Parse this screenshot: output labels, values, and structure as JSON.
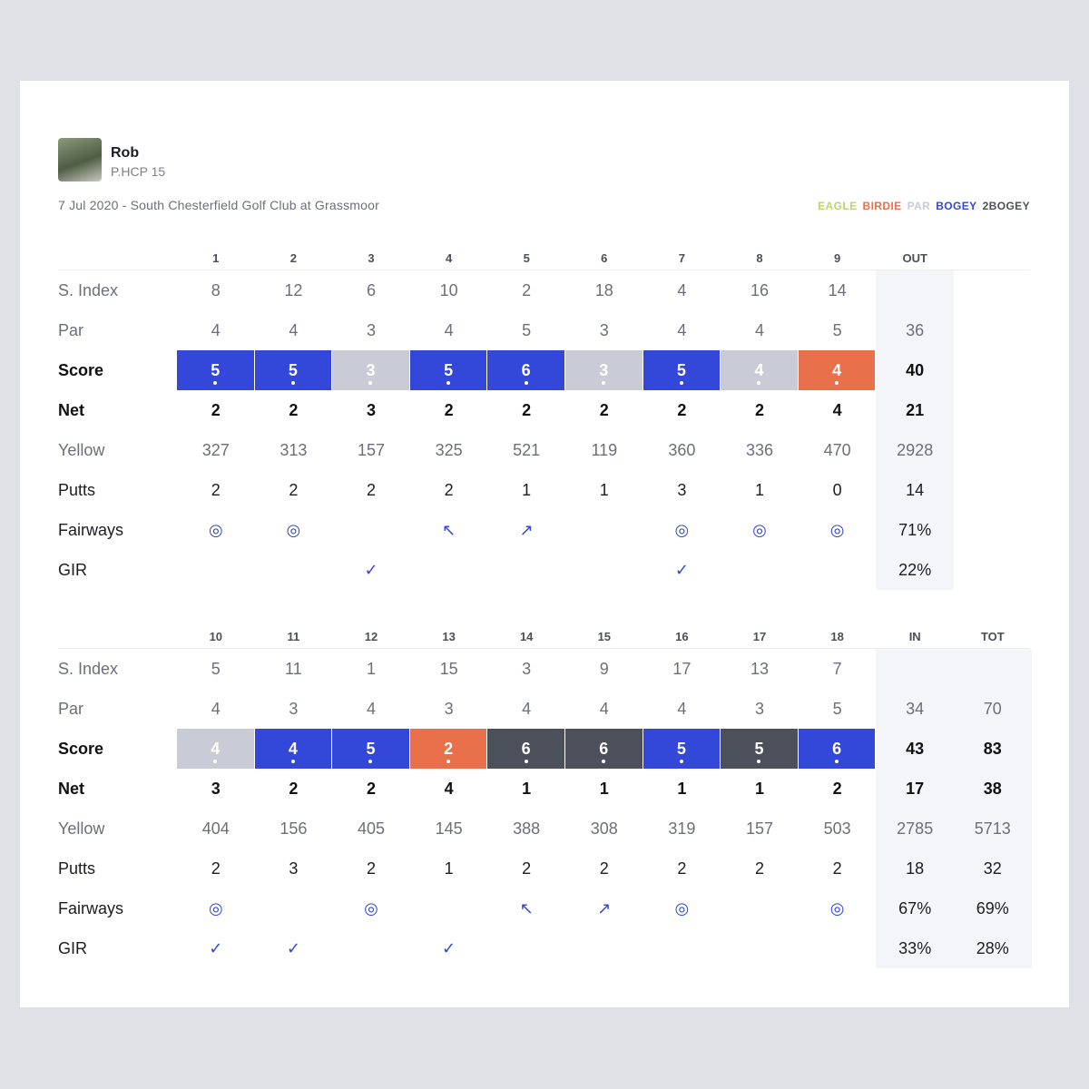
{
  "player": {
    "name": "Rob",
    "handicap": "P.HCP 15"
  },
  "round": "7 Jul 2020 - South Chesterfield Golf Club at Grassmoor",
  "legend": [
    {
      "label": "EAGLE",
      "color": "#b7d66e"
    },
    {
      "label": "BIRDIE",
      "color": "#e8704a"
    },
    {
      "label": "PAR",
      "color": "#c9ccd6"
    },
    {
      "label": "BOGEY",
      "color": "#3347d9"
    },
    {
      "label": "2BOGEY",
      "color": "#4b505b"
    }
  ],
  "tables": [
    {
      "columns": [
        "1",
        "2",
        "3",
        "4",
        "5",
        "6",
        "7",
        "8",
        "9",
        "OUT"
      ],
      "rows": [
        {
          "label": "S. Index",
          "cells": [
            8,
            12,
            6,
            10,
            2,
            18,
            4,
            16,
            14,
            null
          ]
        },
        {
          "label": "Par",
          "cells": [
            4,
            4,
            3,
            4,
            5,
            3,
            4,
            4,
            5,
            36
          ]
        },
        {
          "label": "Score",
          "cells": [
            5,
            5,
            3,
            5,
            6,
            3,
            5,
            4,
            4,
            40
          ],
          "results": [
            3,
            3,
            2,
            3,
            3,
            2,
            3,
            2,
            1
          ]
        },
        {
          "label": "Net",
          "cells": [
            2,
            2,
            3,
            2,
            2,
            2,
            2,
            2,
            4,
            21
          ]
        },
        {
          "label": "Yellow",
          "cells": [
            327,
            313,
            157,
            325,
            521,
            119,
            360,
            336,
            470,
            2928
          ]
        },
        {
          "label": "Putts",
          "cells": [
            2,
            2,
            2,
            2,
            1,
            1,
            3,
            1,
            0,
            14
          ]
        },
        {
          "label": "Fairways",
          "cells": [
            "◎",
            "◎",
            null,
            "↖",
            "↗",
            null,
            "◎",
            "◎",
            "◎",
            "71%"
          ]
        },
        {
          "label": "GIR",
          "cells": [
            null,
            null,
            "✓",
            null,
            null,
            null,
            "✓",
            null,
            null,
            "22%"
          ]
        }
      ]
    },
    {
      "columns": [
        "10",
        "11",
        "12",
        "13",
        "14",
        "15",
        "16",
        "17",
        "18",
        "IN",
        "TOT"
      ],
      "rows": [
        {
          "label": "S. Index",
          "cells": [
            5,
            11,
            1,
            15,
            3,
            9,
            17,
            13,
            7,
            null,
            null
          ]
        },
        {
          "label": "Par",
          "cells": [
            4,
            3,
            4,
            3,
            4,
            4,
            4,
            3,
            5,
            34,
            70
          ]
        },
        {
          "label": "Score",
          "cells": [
            4,
            4,
            5,
            2,
            6,
            6,
            5,
            5,
            6,
            43,
            83
          ],
          "results": [
            2,
            3,
            3,
            1,
            4,
            4,
            3,
            4,
            3
          ]
        },
        {
          "label": "Net",
          "cells": [
            3,
            2,
            2,
            4,
            1,
            1,
            1,
            1,
            2,
            17,
            38
          ]
        },
        {
          "label": "Yellow",
          "cells": [
            404,
            156,
            405,
            145,
            388,
            308,
            319,
            157,
            503,
            2785,
            5713
          ]
        },
        {
          "label": "Putts",
          "cells": [
            2,
            3,
            2,
            1,
            2,
            2,
            2,
            2,
            2,
            18,
            32
          ]
        },
        {
          "label": "Fairways",
          "cells": [
            "◎",
            null,
            "◎",
            null,
            "↖",
            "↗",
            "◎",
            null,
            "◎",
            "67%",
            "69%"
          ]
        },
        {
          "label": "GIR",
          "cells": [
            "✓",
            "✓",
            null,
            "✓",
            null,
            null,
            null,
            null,
            null,
            "33%",
            "28%"
          ]
        }
      ]
    }
  ]
}
